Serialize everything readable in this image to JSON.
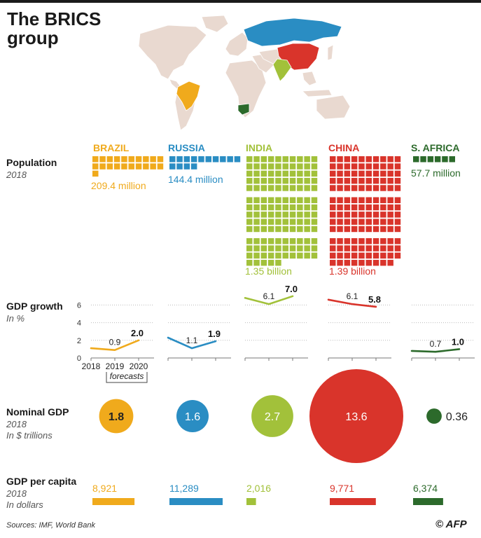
{
  "title": "The BRICS group",
  "sections": {
    "population": {
      "title": "Population",
      "sub": "2018"
    },
    "gdp_growth": {
      "title": "GDP growth",
      "sub": "In %"
    },
    "nominal_gdp": {
      "title": "Nominal GDP",
      "sub1": "2018",
      "sub2": "In $ trillions"
    },
    "gdp_per_capita": {
      "title": "GDP per capita",
      "sub1": "2018",
      "sub2": "In dollars"
    }
  },
  "sources": "Sources: IMF, World Bank",
  "credit": "© AFP",
  "countries": [
    {
      "name": "BRAZIL",
      "color": "#f0aa1c",
      "population_label": "209.4 million",
      "growth": [
        {
          "value": "0.9"
        },
        {
          "value": "2.0"
        }
      ],
      "gdp_label": "1.8",
      "gdppc_label": "8,921"
    },
    {
      "name": "RUSSIA",
      "color": "#2a8dc3",
      "population_label": "144.4 million",
      "growth": [
        {
          "value": "1.1"
        },
        {
          "value": "1.9"
        }
      ],
      "gdp_label": "1.6",
      "gdppc_label": "11,289"
    },
    {
      "name": "INDIA",
      "color": "#a2c13a",
      "population_label": "1.35 billion",
      "growth": [
        {
          "value": "6.1"
        },
        {
          "value": "7.0"
        }
      ],
      "gdp_label": "2.7",
      "gdppc_label": "2,016"
    },
    {
      "name": "CHINA",
      "color": "#d9342b",
      "population_label": "1.39 billion",
      "growth": [
        {
          "value": "6.1"
        },
        {
          "value": "5.8"
        }
      ],
      "gdp_label": "13.6",
      "gdppc_label": "9,771"
    },
    {
      "name": "S. AFRICA",
      "color": "#2c6a2b",
      "population_label": "57.7 million",
      "growth": [
        {
          "value": "0.7"
        },
        {
          "value": "1.0"
        }
      ],
      "gdp_label": "0.36",
      "gdppc_label": "6,374"
    }
  ],
  "growth_axis": {
    "ticks": [
      "0",
      "2",
      "4",
      "6"
    ],
    "years": [
      "2018",
      "2019",
      "2020"
    ],
    "forecast_label": "forecasts"
  },
  "chart_data": {
    "type": "line",
    "title": "The BRICS group",
    "categories": [
      "BRAZIL",
      "RUSSIA",
      "INDIA",
      "CHINA",
      "S. AFRICA"
    ],
    "population_millions": [
      209.4,
      144.4,
      1350,
      1390,
      57.7
    ],
    "gdp_growth_pct": {
      "x": [
        2018,
        2019,
        2020
      ],
      "series": [
        {
          "name": "BRAZIL",
          "values": [
            1.1,
            0.9,
            2.0
          ]
        },
        {
          "name": "RUSSIA",
          "values": [
            2.3,
            1.1,
            1.9
          ]
        },
        {
          "name": "INDIA",
          "values": [
            6.8,
            6.1,
            7.0
          ]
        },
        {
          "name": "CHINA",
          "values": [
            6.6,
            6.1,
            5.8
          ]
        },
        {
          "name": "S. AFRICA",
          "values": [
            0.8,
            0.7,
            1.0
          ]
        }
      ],
      "ylim": [
        0,
        7
      ],
      "yticks": [
        0,
        2,
        4,
        6
      ]
    },
    "nominal_gdp_trillions": [
      1.8,
      1.6,
      2.7,
      13.6,
      0.36
    ],
    "gdp_per_capita_dollars": [
      8921,
      11289,
      2016,
      9771,
      6374
    ]
  }
}
